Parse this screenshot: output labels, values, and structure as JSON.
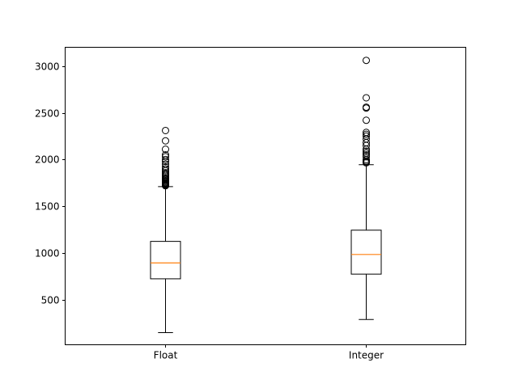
{
  "chart_data": {
    "type": "box",
    "title": "",
    "xlabel": "",
    "ylabel": "",
    "categories": [
      "Float",
      "Integer"
    ],
    "ylim": [
      20,
      3200
    ],
    "yticks": [
      500,
      1000,
      1500,
      2000,
      2500,
      3000
    ],
    "grid": false,
    "colors": {
      "box": "#000000",
      "median": "#ff7f0e",
      "flier": "#000000"
    },
    "boxes": [
      {
        "label": "Float",
        "whisker_low": 150,
        "q1": 725,
        "median": 895,
        "q3": 1125,
        "whisker_high": 1710,
        "fliers": [
          1720,
          1725,
          1730,
          1735,
          1740,
          1745,
          1750,
          1760,
          1770,
          1780,
          1790,
          1800,
          1815,
          1830,
          1845,
          1860,
          1880,
          1900,
          1920,
          1950,
          1980,
          2000,
          2030,
          2050,
          2110,
          2200,
          2310
        ]
      },
      {
        "label": "Integer",
        "whisker_low": 290,
        "q1": 775,
        "median": 985,
        "q3": 1245,
        "whisker_high": 1945,
        "fliers": [
          1965,
          1975,
          1985,
          2000,
          2030,
          2050,
          2070,
          2090,
          2110,
          2150,
          2180,
          2220,
          2250,
          2270,
          2290,
          2420,
          2550,
          2560,
          2660,
          3060
        ]
      }
    ]
  }
}
